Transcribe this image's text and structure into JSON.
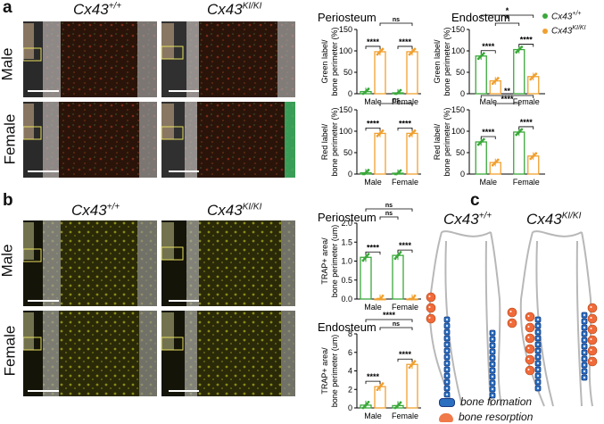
{
  "panels": {
    "a": "a",
    "b": "b",
    "c": "c"
  },
  "genotypes": {
    "wt": "Cx43",
    "wt_sup": "+/+",
    "ki": "Cx43",
    "ki_sup": "KI/KI"
  },
  "rows": {
    "male": "Male",
    "female": "Female"
  },
  "colors": {
    "wt": "#3aa83a",
    "ki": "#f0a030",
    "formation": "#2a6fc0",
    "resorption": "#f06a3a"
  },
  "legend": {
    "wt": "Cx43",
    "wt_sup": "+/+",
    "ki": "Cx43",
    "ki_sup": "KI/KI"
  },
  "titles": {
    "a_periosteum": "Periosteum",
    "a_endosteum": "Endosteum",
    "b_periosteum": "Periosteum",
    "b_endosteum": "Endosteum"
  },
  "schematic": {
    "formation": "bone formation",
    "resorption": "bone resorption"
  },
  "chart_data": [
    {
      "id": "a_peri_green",
      "type": "bar",
      "title": "Periosteum",
      "ylabel": "Green label/ bone perimeter (%)",
      "categories": [
        "Male",
        "Female"
      ],
      "ylim": [
        0,
        150
      ],
      "yticks": [
        0,
        50,
        100,
        150
      ],
      "series": [
        {
          "values": [
            5,
            2
          ]
        },
        {
          "values": [
            98,
            98
          ]
        }
      ],
      "annotations": [
        "****",
        "****",
        "ns"
      ]
    },
    {
      "id": "a_peri_red",
      "type": "bar",
      "ylabel": "Red label/ bone perimeter (%)",
      "categories": [
        "Male",
        "Female"
      ],
      "ylim": [
        0,
        150
      ],
      "yticks": [
        0,
        50,
        100,
        150
      ],
      "series": [
        {
          "values": [
            3,
            2
          ]
        },
        {
          "values": [
            95,
            95
          ]
        }
      ],
      "annotations": [
        "****",
        "****",
        "ns"
      ]
    },
    {
      "id": "a_endo_green",
      "type": "bar",
      "title": "Endosteum",
      "ylabel": "Green label/ bone perimeter (%)",
      "categories": [
        "Male",
        "Female"
      ],
      "ylim": [
        0,
        150
      ],
      "yticks": [
        0,
        50,
        100,
        150
      ],
      "series": [
        {
          "values": [
            88,
            103
          ]
        },
        {
          "values": [
            30,
            40
          ]
        }
      ],
      "annotations": [
        "****",
        "****",
        "*",
        "*"
      ]
    },
    {
      "id": "a_endo_red",
      "type": "bar",
      "ylabel": "Red label/ bone perimeter (%)",
      "categories": [
        "Male",
        "Female"
      ],
      "ylim": [
        0,
        150
      ],
      "yticks": [
        0,
        50,
        100,
        150
      ],
      "series": [
        {
          "values": [
            75,
            98
          ]
        },
        {
          "values": [
            27,
            42
          ]
        }
      ],
      "annotations": [
        "****",
        "****",
        "****",
        "**"
      ]
    },
    {
      "id": "b_peri",
      "type": "bar",
      "title": "Periosteum",
      "ylabel": "TRAP+ area/ bone perimeter (um)",
      "categories": [
        "Male",
        "Female"
      ],
      "ylim": [
        0,
        2.0
      ],
      "yticks": [
        0.0,
        0.5,
        1.0,
        1.5,
        2.0
      ],
      "series": [
        {
          "values": [
            1.1,
            1.15
          ]
        },
        {
          "values": [
            0.0,
            0.0
          ]
        }
      ],
      "annotations": [
        "****",
        "****",
        "ns",
        "ns"
      ]
    },
    {
      "id": "b_endo",
      "type": "bar",
      "title": "Endosteum",
      "ylabel": "TRAP+ area/ bone perimeter (um)",
      "categories": [
        "Male",
        "Female"
      ],
      "ylim": [
        0,
        8
      ],
      "yticks": [
        0,
        2,
        4,
        6,
        8
      ],
      "series": [
        {
          "values": [
            0.3,
            0.25
          ]
        },
        {
          "values": [
            2.3,
            4.7
          ]
        }
      ],
      "annotations": [
        "****",
        "****",
        "ns",
        "****"
      ]
    }
  ]
}
